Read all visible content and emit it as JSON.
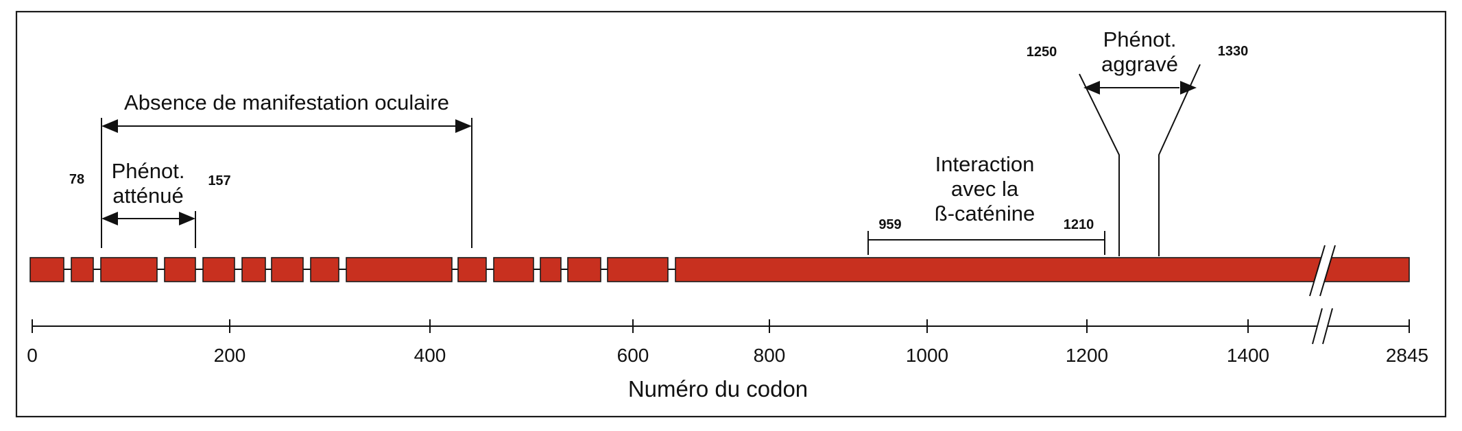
{
  "axis": {
    "title": "Numéro du codon",
    "ticks": [
      "0",
      "200",
      "400",
      "600",
      "800",
      "1000",
      "1200",
      "1400",
      "2845"
    ]
  },
  "annotations": {
    "no_ocular": "Absence de manifestation oculaire",
    "attenuated_line1": "Phénot.",
    "attenuated_line2": "atténué",
    "attenuated_start": "78",
    "attenuated_end": "157",
    "catenin_line1": "Interaction",
    "catenin_line2": "avec la",
    "catenin_line3": "ß-caténine",
    "catenin_start": "959",
    "catenin_end": "1210",
    "severe_line1": "Phénot.",
    "severe_line2": "aggravé",
    "severe_start": "1250",
    "severe_end": "1330"
  },
  "colors": {
    "exon_fill": "#c8301f",
    "outline": "#1a1a1a"
  }
}
